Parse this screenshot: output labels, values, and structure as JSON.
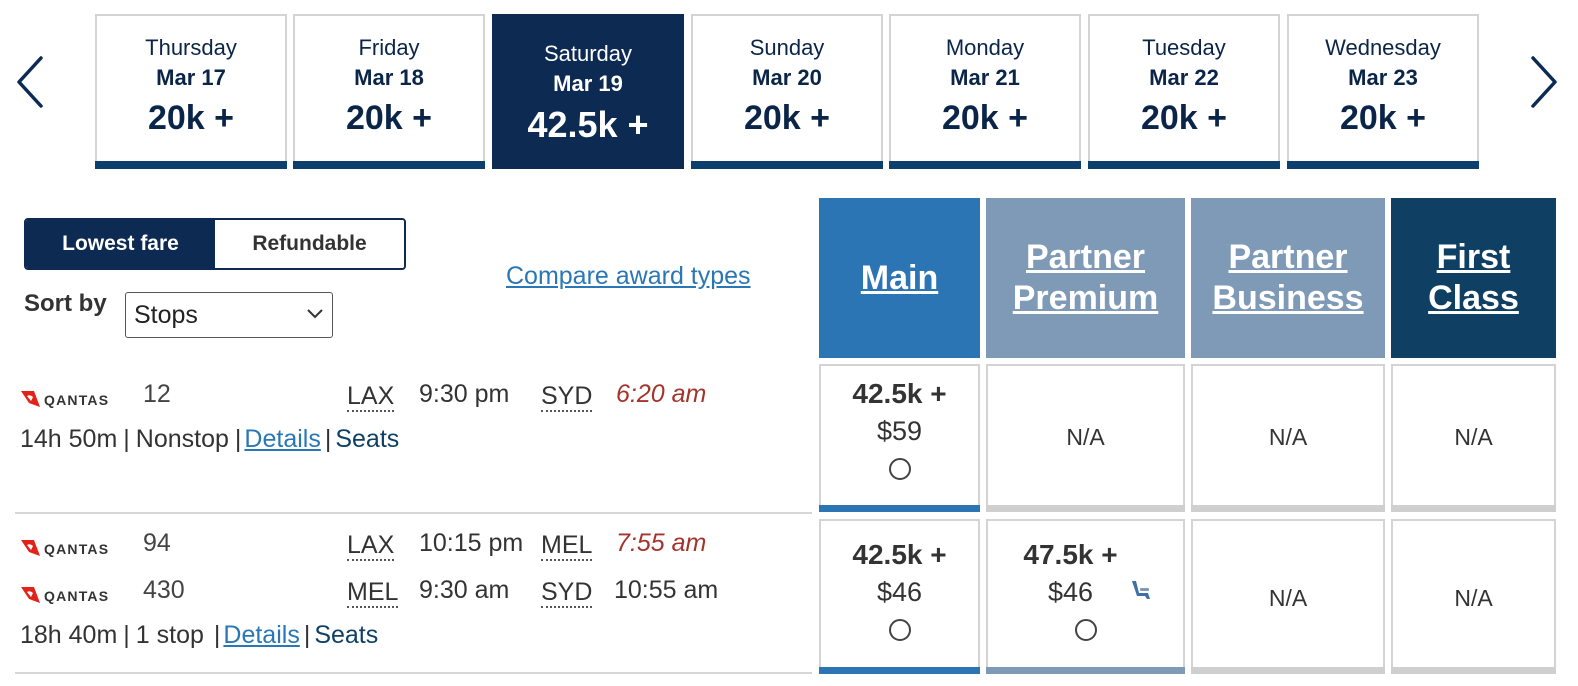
{
  "dates": [
    {
      "day": "Thursday",
      "date": "Mar 17",
      "price": "20k +",
      "selected": false
    },
    {
      "day": "Friday",
      "date": "Mar 18",
      "price": "20k +",
      "selected": false
    },
    {
      "day": "Saturday",
      "date": "Mar 19",
      "price": "42.5k +",
      "selected": true
    },
    {
      "day": "Sunday",
      "date": "Mar 20",
      "price": "20k +",
      "selected": false
    },
    {
      "day": "Monday",
      "date": "Mar 21",
      "price": "20k +",
      "selected": false
    },
    {
      "day": "Tuesday",
      "date": "Mar 22",
      "price": "20k +",
      "selected": false
    },
    {
      "day": "Wednesday",
      "date": "Mar 23",
      "price": "20k +",
      "selected": false
    }
  ],
  "fare_toggle": {
    "lowest": "Lowest fare",
    "refundable": "Refundable",
    "active": "lowest"
  },
  "sort": {
    "label": "Sort by",
    "value": "Stops"
  },
  "compare_link": "Compare award types",
  "cabins": {
    "main": "Main",
    "partner_premium": "Partner Premium",
    "partner_business": "Partner Business",
    "first": "First Class"
  },
  "flights": [
    {
      "segments": [
        {
          "airline_icon": "qantas-logo",
          "number": "12",
          "from": "LAX",
          "depart": "9:30 pm",
          "to": "SYD",
          "arrive": "6:20 am",
          "arrive_next_day": true
        }
      ],
      "duration": "14h 50m",
      "stops": "Nonstop",
      "details_label": "Details",
      "seats_label": "Seats",
      "fares": {
        "main": {
          "miles": "42.5k +",
          "tax": "$59"
        },
        "partner_premium": "N/A",
        "partner_business": "N/A",
        "first": "N/A"
      }
    },
    {
      "segments": [
        {
          "airline_icon": "qantas-logo",
          "number": "94",
          "from": "LAX",
          "depart": "10:15 pm",
          "to": "MEL",
          "arrive": "7:55 am",
          "arrive_next_day": true
        },
        {
          "airline_icon": "qantas-logo",
          "number": "430",
          "from": "MEL",
          "depart": "9:30 am",
          "to": "SYD",
          "arrive": "10:55 am",
          "arrive_next_day": false
        }
      ],
      "duration": "18h 40m",
      "stops": "1 stop",
      "details_label": "Details",
      "seats_label": "Seats",
      "fares": {
        "main": {
          "miles": "42.5k +",
          "tax": "$46"
        },
        "partner_premium": {
          "miles": "47.5k +",
          "tax": "$46",
          "icon": "seat-icon"
        },
        "partner_business": "N/A",
        "first": "N/A"
      }
    }
  ],
  "colors": {
    "navy": "#0c2a52",
    "main_blue": "#2c75b4",
    "partner_slate": "#7f9ab7",
    "first_dark": "#0f4064",
    "link_blue": "#2a77b5",
    "late_red": "#a3332b"
  }
}
